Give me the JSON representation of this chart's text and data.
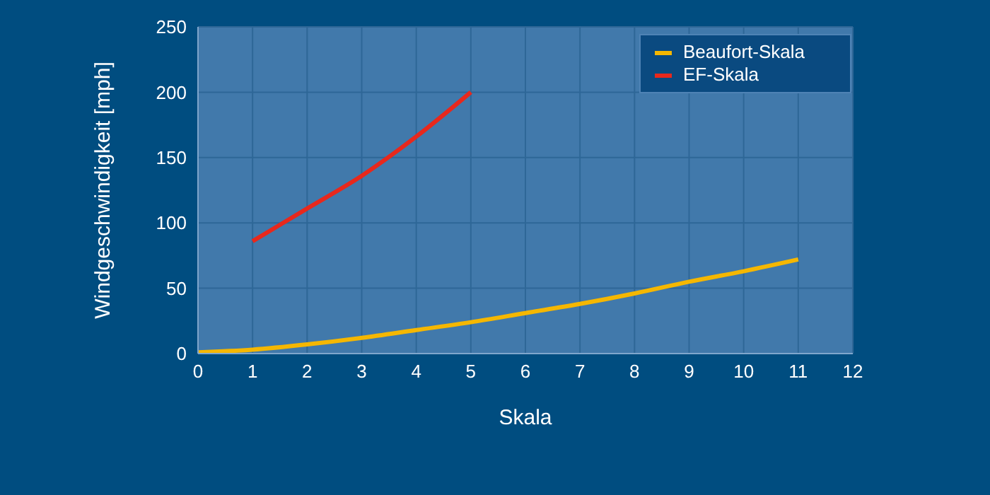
{
  "chart_data": {
    "type": "line",
    "xlabel": "Skala",
    "ylabel": "Windgeschwindigkeit [mph]",
    "series": [
      {
        "name": "Beaufort-Skala",
        "color": "#f5b700",
        "x": [
          0,
          1,
          2,
          3,
          4,
          5,
          6,
          7,
          8,
          9,
          10,
          11
        ],
        "values": [
          1,
          3,
          7,
          12,
          18,
          24,
          31,
          38,
          46,
          55,
          63,
          72
        ]
      },
      {
        "name": "EF-Skala",
        "color": "#e8281c",
        "x": [
          1,
          2,
          3,
          4,
          5
        ],
        "values": [
          86,
          111,
          136,
          166,
          200
        ]
      }
    ],
    "xlim": [
      0,
      12
    ],
    "xticks": [
      0,
      1,
      2,
      3,
      4,
      5,
      6,
      7,
      8,
      9,
      10,
      11,
      12
    ],
    "ylim": [
      0,
      250
    ],
    "yticks": [
      0,
      50,
      100,
      150,
      200,
      250
    ],
    "grid": true,
    "legend": "top right",
    "marker": "none",
    "line_style": "solid"
  }
}
